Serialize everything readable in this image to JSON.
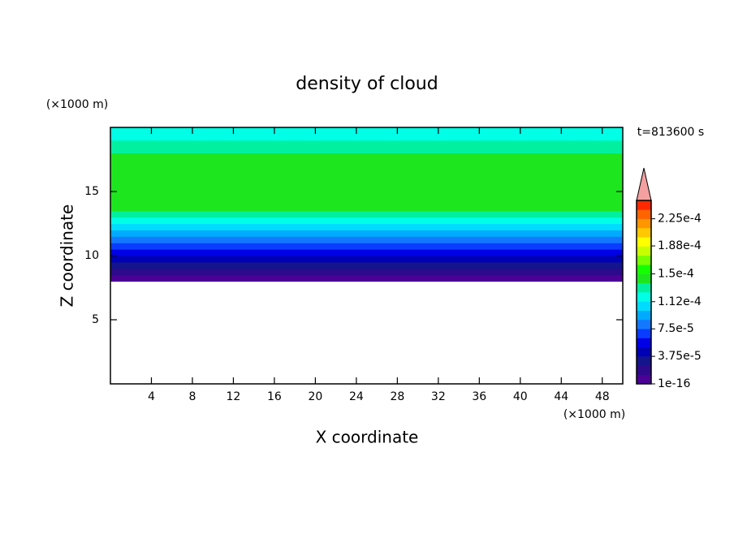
{
  "chart_data": {
    "type": "contour",
    "title": "density of cloud",
    "x_label": "X coordinate",
    "y_label": "Z coordinate",
    "x_unit": "(×1000 m)",
    "y_unit": "(×1000 m)",
    "time_label": "t=813600 s",
    "xlim": [
      0,
      50
    ],
    "ylim": [
      0,
      20
    ],
    "xticks": [
      4,
      8,
      12,
      16,
      20,
      24,
      28,
      32,
      36,
      40,
      44,
      48
    ],
    "yticks": [
      5,
      10,
      15
    ],
    "z_bins": [
      8,
      8.5,
      9,
      9.5,
      10,
      10.5,
      11,
      11.5,
      12,
      12.5,
      13,
      13.5,
      14,
      14.5,
      15,
      15.5,
      16,
      16.5,
      17,
      17.5,
      18,
      18.5,
      19,
      19.5,
      20
    ],
    "values": [
      5e-06,
      1.5e-05,
      2.8e-05,
      4.2e-05,
      5.5e-05,
      7e-05,
      8e-05,
      9.5e-05,
      0.000105,
      0.000115,
      0.00013,
      0.000145,
      0.000145,
      0.000145,
      0.000145,
      0.000145,
      0.000145,
      0.000145,
      0.000145,
      0.000145,
      0.00013,
      0.00013,
      0.00012,
      0.00012
    ],
    "colorbar": {
      "lim": [
        1e-16,
        0.00025
      ],
      "ticks": [
        {
          "value": 1e-16,
          "label": "1e-16"
        },
        {
          "value": 3.75e-05,
          "label": "3.75e-5"
        },
        {
          "value": 7.5e-05,
          "label": "7.5e-5"
        },
        {
          "value": 0.000112,
          "label": "1.12e-4"
        },
        {
          "value": 0.00015,
          "label": "1.5e-4"
        },
        {
          "value": 0.000188,
          "label": "1.88e-4"
        },
        {
          "value": 0.000225,
          "label": "2.25e-4"
        }
      ],
      "colors": [
        "#4b0096",
        "#2d0a8c",
        "#14148c",
        "#0000b4",
        "#0000e6",
        "#0a3cff",
        "#1478ff",
        "#00aaff",
        "#00dcff",
        "#00ffe6",
        "#00f0a0",
        "#1ee61e",
        "#14ff00",
        "#78ff00",
        "#c8ff00",
        "#ffff00",
        "#ffc800",
        "#ff9600",
        "#ff6400",
        "#ff2800"
      ],
      "extend_color": "#f4a0a0"
    }
  }
}
